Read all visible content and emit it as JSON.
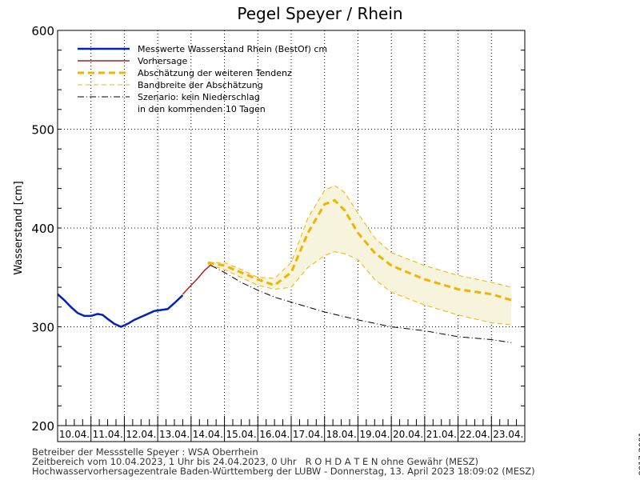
{
  "chart_data": {
    "type": "line",
    "title": "Pegel Speyer / Rhein",
    "ylabel": "Wasserstand [cm]",
    "xlabel": "",
    "ylim": [
      200,
      600
    ],
    "yticks": [
      200,
      300,
      400,
      500,
      600
    ],
    "categories": [
      "10.04.",
      "11.04.",
      "12.04.",
      "13.04.",
      "14.04.",
      "15.04.",
      "16.04.",
      "17.04.",
      "18.04.",
      "19.04.",
      "20.04.",
      "21.04.",
      "22.04.",
      "23.04."
    ],
    "x_unit": "days since 10.04.2023 00:00",
    "grid": true,
    "legend_position": "top-left",
    "legend": [
      "Messwerte Wasserstand Rhein (BestOf)  cm",
      "Vorhersage",
      "Abschätzung der weiteren Tendenz",
      "Bandbreite der Abschätzung",
      "Szenario: kein Niederschlag",
      "in den kommenden 10 Tagen"
    ],
    "series": [
      {
        "name": "Messwerte Wasserstand Rhein (BestOf)",
        "color": "#0022bb",
        "x": [
          0,
          0.2,
          0.4,
          0.6,
          0.8,
          1.0,
          1.2,
          1.35,
          1.5,
          1.7,
          1.9,
          2.1,
          2.3,
          2.5,
          2.7,
          2.9,
          3.1,
          3.3,
          3.5,
          3.75
        ],
        "y": [
          333,
          327,
          320,
          314,
          311,
          311,
          313,
          312,
          308,
          303,
          300,
          303,
          307,
          310,
          313,
          316,
          317,
          318,
          324,
          332
        ]
      },
      {
        "name": "Vorhersage",
        "color": "#aa2222",
        "x": [
          3.75,
          4.0,
          4.2,
          4.4,
          4.6
        ],
        "y": [
          333,
          342,
          349,
          357,
          363
        ]
      },
      {
        "name": "Abschätzung der weiteren Tendenz",
        "color": "#f0b400",
        "x": [
          4.5,
          5.0,
          5.5,
          6.0,
          6.5,
          7.0,
          7.5,
          8.0,
          8.3,
          8.6,
          9.0,
          9.5,
          10,
          11,
          12,
          13,
          13.6
        ],
        "y": [
          365,
          362,
          355,
          348,
          342,
          355,
          395,
          424,
          428,
          418,
          395,
          375,
          362,
          348,
          338,
          333,
          327
        ]
      },
      {
        "name": "Bandbreite oben",
        "color": "#f0b400",
        "x": [
          4.5,
          5.0,
          5.5,
          6.0,
          6.5,
          7.0,
          7.5,
          8.0,
          8.3,
          8.6,
          9.0,
          9.5,
          10,
          11,
          12,
          13,
          13.6
        ],
        "y": [
          365,
          365,
          358,
          350,
          349,
          365,
          410,
          438,
          443,
          436,
          415,
          390,
          375,
          362,
          352,
          345,
          340
        ]
      },
      {
        "name": "Bandbreite unten",
        "color": "#f0b400",
        "x": [
          4.5,
          5.0,
          5.5,
          6.0,
          6.5,
          7.0,
          7.5,
          8.0,
          8.3,
          8.6,
          9.0,
          9.5,
          10,
          11,
          12,
          13,
          13.6
        ],
        "y": [
          363,
          358,
          350,
          342,
          338,
          340,
          360,
          372,
          376,
          374,
          368,
          348,
          335,
          322,
          312,
          304,
          302
        ]
      },
      {
        "name": "Szenario: kein Niederschlag",
        "color": "#000000",
        "x": [
          4.6,
          5.0,
          5.5,
          6.0,
          6.5,
          7.0,
          8,
          9,
          10,
          11,
          12,
          13,
          13.6
        ],
        "y": [
          362,
          355,
          345,
          337,
          330,
          325,
          315,
          307,
          300,
          296,
          290,
          287,
          284
        ]
      }
    ]
  },
  "footer": {
    "line1": "Betreiber der Messstelle Speyer : WSA Oberrhein",
    "line2": "Zeitbereich vom 10.04.2023, 1 Uhr bis 24.04.2023, 0 Uhr   R O H D A T E N ohne Gewähr (MESZ)",
    "line3": "Hochwasservorhersagezentrale Baden-Württemberg der LUBW - Donnerstag, 13. April 2023 18:09:02 (MESZ)",
    "side": "9017-2001"
  }
}
